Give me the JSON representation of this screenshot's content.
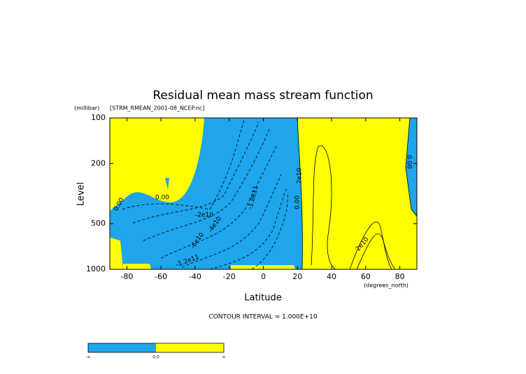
{
  "chart_data": {
    "type": "contour",
    "title": "Residual mean mass stream function",
    "subtitle": "[STRM_RMEAN_2001-08_NCEP.nc]",
    "y_unit": "(millibar)",
    "x_unit": "(degrees_north)",
    "ylabel": "Level",
    "xlabel": "Latitude",
    "contour_interval": "CONTOUR INTERVAL = 1.000E+10",
    "xlim": [
      -90,
      90
    ],
    "xticks": [
      -80,
      -60,
      -40,
      -20,
      0,
      20,
      40,
      60,
      80
    ],
    "ylim": [
      1000,
      100
    ],
    "yticks": [
      100,
      200,
      500,
      1000
    ],
    "log_y": true,
    "fill_colors": [
      "#1ea5ec",
      "#ffff00"
    ],
    "contour_labels": [
      "0.00",
      "0.00",
      "-2e10",
      "-4e10",
      "-6e10",
      "-1.2e11",
      "-1.8e11",
      "2e10",
      "0.00",
      "2e10",
      "0.00"
    ],
    "colorbar_labels": [
      "-∞",
      "0.0",
      "∞"
    ]
  }
}
